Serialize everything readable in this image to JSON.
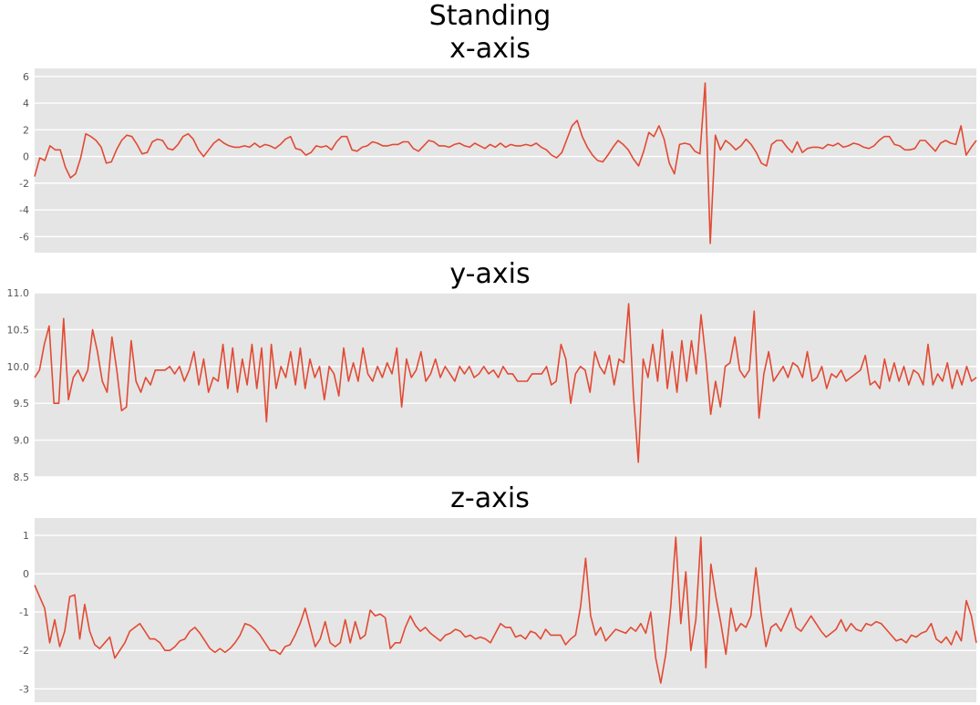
{
  "figure": {
    "title": "Standing"
  },
  "colors": {
    "background": "#e5e5e5",
    "grid": "#ffffff",
    "line": "#e24a33",
    "tick": "#555555"
  },
  "chart_data": [
    {
      "type": "line",
      "title": "x-axis",
      "ylim": [
        -7.2,
        6.6
      ],
      "yticks": [
        6,
        4,
        2,
        0,
        -2,
        -4,
        -6
      ],
      "ytick_labels": [
        "6",
        "4",
        "2",
        "0",
        "-2",
        "-4",
        "-6"
      ],
      "grid": true,
      "series": [
        {
          "values": [
            -1.5,
            -0.1,
            -0.3,
            0.8,
            0.5,
            0.5,
            -0.8,
            -1.6,
            -1.3,
            -0.1,
            1.7,
            1.5,
            1.2,
            0.7,
            -0.5,
            -0.4,
            0.5,
            1.2,
            1.6,
            1.5,
            0.9,
            0.2,
            0.3,
            1.1,
            1.3,
            1.2,
            0.6,
            0.5,
            0.9,
            1.5,
            1.7,
            1.3,
            0.5,
            0.0,
            0.5,
            1.0,
            1.3,
            1.0,
            0.8,
            0.7,
            0.7,
            0.8,
            0.7,
            1.0,
            0.7,
            0.9,
            0.8,
            0.6,
            0.9,
            1.3,
            1.5,
            0.6,
            0.5,
            0.1,
            0.3,
            0.8,
            0.7,
            0.8,
            0.5,
            1.1,
            1.5,
            1.5,
            0.5,
            0.4,
            0.7,
            0.8,
            1.1,
            1.0,
            0.8,
            0.8,
            0.9,
            0.9,
            1.1,
            1.1,
            0.6,
            0.4,
            0.8,
            1.2,
            1.1,
            0.8,
            0.8,
            0.7,
            0.9,
            1.0,
            0.8,
            0.7,
            1.0,
            0.8,
            0.6,
            0.9,
            0.7,
            1.0,
            0.7,
            0.9,
            0.8,
            0.8,
            0.9,
            0.8,
            1.0,
            0.7,
            0.5,
            0.1,
            -0.1,
            0.3,
            1.3,
            2.3,
            2.7,
            1.5,
            0.7,
            0.1,
            -0.3,
            -0.4,
            0.1,
            0.7,
            1.2,
            0.9,
            0.5,
            -0.2,
            -0.7,
            0.4,
            1.8,
            1.5,
            2.3,
            1.3,
            -0.5,
            -1.3,
            0.9,
            1.0,
            0.9,
            0.4,
            0.2,
            5.5,
            -6.5,
            1.6,
            0.5,
            1.2,
            0.9,
            0.5,
            0.8,
            1.3,
            0.9,
            0.3,
            -0.5,
            -0.7,
            0.9,
            1.2,
            1.2,
            0.7,
            0.3,
            1.1,
            0.3,
            0.6,
            0.7,
            0.7,
            0.6,
            0.9,
            0.8,
            1.0,
            0.7,
            0.8,
            1.0,
            0.9,
            0.7,
            0.6,
            0.8,
            1.2,
            1.5,
            1.5,
            0.9,
            0.8,
            0.5,
            0.5,
            0.6,
            1.2,
            1.2,
            0.8,
            0.4,
            1.0,
            1.2,
            1.0,
            0.9,
            2.3,
            0.1,
            0.7,
            1.2
          ]
        }
      ]
    },
    {
      "type": "line",
      "title": "y-axis",
      "ylim": [
        8.5,
        11.0
      ],
      "yticks": [
        11.0,
        10.5,
        10.0,
        9.5,
        9.0,
        8.5
      ],
      "ytick_labels": [
        "11.0",
        "10.5",
        "10.0",
        "9.5",
        "9.0",
        "8.5"
      ],
      "grid": true,
      "series": [
        {
          "values": [
            9.85,
            9.95,
            10.3,
            10.55,
            9.5,
            9.5,
            10.65,
            9.55,
            9.85,
            9.95,
            9.8,
            9.95,
            10.5,
            10.2,
            9.8,
            9.65,
            10.4,
            9.95,
            9.4,
            9.45,
            10.35,
            9.8,
            9.65,
            9.85,
            9.75,
            9.95,
            9.95,
            9.95,
            10.0,
            9.9,
            10.0,
            9.8,
            9.95,
            10.2,
            9.75,
            10.1,
            9.65,
            9.85,
            9.8,
            10.3,
            9.7,
            10.25,
            9.65,
            10.1,
            9.75,
            10.3,
            9.7,
            10.25,
            9.25,
            10.3,
            9.7,
            10.0,
            9.85,
            10.2,
            9.75,
            10.25,
            9.7,
            10.1,
            9.85,
            10.0,
            9.55,
            10.0,
            9.9,
            9.6,
            10.25,
            9.8,
            10.05,
            9.8,
            10.25,
            9.9,
            9.8,
            10.0,
            9.85,
            10.05,
            9.9,
            10.25,
            9.45,
            10.1,
            9.85,
            9.95,
            10.2,
            9.8,
            9.9,
            10.1,
            9.85,
            10.0,
            9.9,
            9.8,
            10.0,
            9.9,
            10.0,
            9.85,
            9.9,
            10.0,
            9.9,
            9.95,
            9.85,
            10.0,
            9.9,
            9.9,
            9.8,
            9.8,
            9.8,
            9.9,
            9.9,
            9.9,
            10.0,
            9.75,
            9.8,
            10.3,
            10.1,
            9.5,
            9.9,
            10.0,
            9.95,
            9.65,
            10.2,
            10.0,
            9.9,
            10.15,
            9.75,
            10.1,
            10.05,
            10.85,
            9.6,
            8.7,
            10.1,
            9.85,
            10.3,
            9.8,
            10.5,
            9.7,
            10.2,
            9.65,
            10.35,
            9.8,
            10.35,
            9.9,
            10.7,
            10.1,
            9.35,
            9.8,
            9.45,
            10.0,
            10.05,
            10.4,
            9.95,
            9.85,
            9.95,
            10.75,
            9.3,
            9.9,
            10.2,
            9.8,
            9.9,
            10.0,
            9.85,
            10.05,
            10.0,
            9.85,
            10.2,
            9.8,
            9.85,
            10.0,
            9.7,
            9.9,
            9.85,
            9.95,
            9.8,
            9.85,
            9.9,
            9.95,
            10.15,
            9.75,
            9.8,
            9.7,
            10.1,
            9.8,
            10.05,
            9.8,
            10.0,
            9.75,
            9.95,
            9.9,
            9.75,
            10.3,
            9.75,
            9.9,
            9.8,
            10.05,
            9.7,
            9.95,
            9.75,
            10.0,
            9.8,
            9.85
          ]
        }
      ]
    },
    {
      "type": "line",
      "title": "z-axis",
      "ylim": [
        -3.35,
        1.45
      ],
      "yticks": [
        1,
        0,
        -1,
        -2,
        -3
      ],
      "ytick_labels": [
        "1",
        "0",
        "-1",
        "-2",
        "-3"
      ],
      "grid": true,
      "series": [
        {
          "values": [
            -0.3,
            -0.6,
            -0.9,
            -1.8,
            -1.2,
            -1.9,
            -1.5,
            -0.6,
            -0.55,
            -1.7,
            -0.8,
            -1.5,
            -1.85,
            -1.95,
            -1.8,
            -1.65,
            -2.2,
            -2.0,
            -1.8,
            -1.5,
            -1.4,
            -1.3,
            -1.5,
            -1.7,
            -1.7,
            -1.8,
            -2.0,
            -2.0,
            -1.9,
            -1.75,
            -1.7,
            -1.5,
            -1.4,
            -1.55,
            -1.75,
            -1.95,
            -2.05,
            -1.95,
            -2.05,
            -1.95,
            -1.8,
            -1.6,
            -1.3,
            -1.35,
            -1.45,
            -1.6,
            -1.8,
            -2.0,
            -2.0,
            -2.1,
            -1.9,
            -1.85,
            -1.6,
            -1.3,
            -0.9,
            -1.4,
            -1.9,
            -1.7,
            -1.25,
            -1.8,
            -1.9,
            -1.8,
            -1.2,
            -1.8,
            -1.25,
            -1.7,
            -1.6,
            -0.95,
            -1.1,
            -1.05,
            -1.15,
            -1.95,
            -1.8,
            -1.8,
            -1.4,
            -1.1,
            -1.35,
            -1.5,
            -1.4,
            -1.55,
            -1.65,
            -1.75,
            -1.6,
            -1.55,
            -1.45,
            -1.5,
            -1.65,
            -1.6,
            -1.7,
            -1.65,
            -1.7,
            -1.8,
            -1.55,
            -1.3,
            -1.4,
            -1.4,
            -1.65,
            -1.6,
            -1.7,
            -1.5,
            -1.55,
            -1.7,
            -1.45,
            -1.6,
            -1.6,
            -1.6,
            -1.85,
            -1.7,
            -1.6,
            -0.85,
            0.4,
            -1.1,
            -1.6,
            -1.4,
            -1.75,
            -1.6,
            -1.45,
            -1.5,
            -1.55,
            -1.4,
            -1.5,
            -1.3,
            -1.55,
            -1.0,
            -2.2,
            -2.85,
            -2.1,
            -0.85,
            0.95,
            -1.3,
            0.05,
            -2.0,
            -1.2,
            0.95,
            -2.45,
            0.25,
            -0.6,
            -1.3,
            -2.1,
            -0.9,
            -1.5,
            -1.3,
            -1.4,
            -1.1,
            0.15,
            -1.0,
            -1.9,
            -1.4,
            -1.3,
            -1.5,
            -1.2,
            -0.9,
            -1.4,
            -1.5,
            -1.3,
            -1.1,
            -1.3,
            -1.5,
            -1.65,
            -1.55,
            -1.45,
            -1.2,
            -1.5,
            -1.3,
            -1.45,
            -1.5,
            -1.3,
            -1.35,
            -1.25,
            -1.3,
            -1.45,
            -1.6,
            -1.75,
            -1.7,
            -1.8,
            -1.6,
            -1.65,
            -1.55,
            -1.5,
            -1.3,
            -1.7,
            -1.8,
            -1.65,
            -1.85,
            -1.5,
            -1.75,
            -0.7,
            -1.1,
            -1.8
          ]
        }
      ]
    }
  ]
}
